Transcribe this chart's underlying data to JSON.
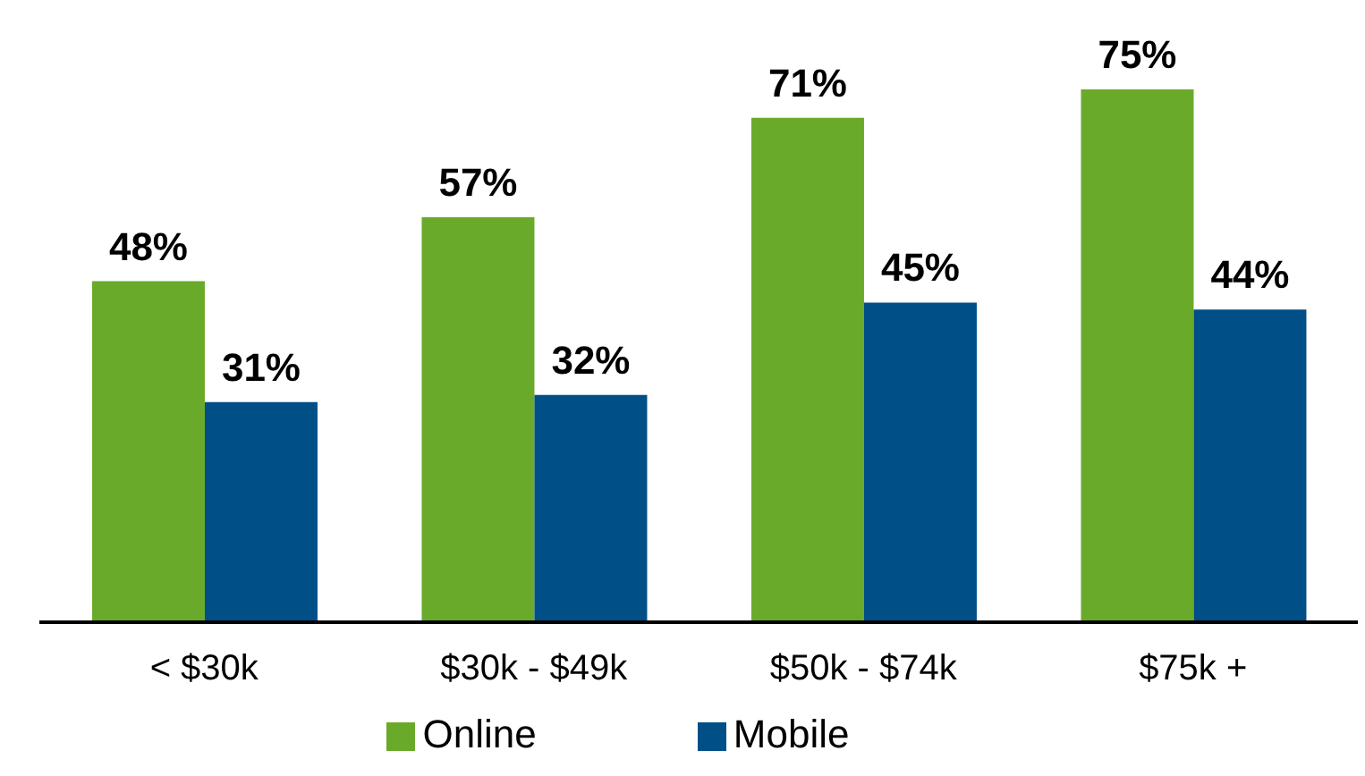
{
  "chart_data": {
    "type": "bar",
    "categories": [
      "< $30k",
      "$30k - $49k",
      "$50k - $74k",
      "$75k +"
    ],
    "series": [
      {
        "name": "Online",
        "color": "#6aaa2a",
        "values": [
          48,
          57,
          71,
          75
        ],
        "value_labels": [
          "48%",
          "57%",
          "71%",
          "75%"
        ]
      },
      {
        "name": "Mobile",
        "color": "#004f86",
        "values": [
          31,
          32,
          45,
          44
        ],
        "value_labels": [
          "31%",
          "32%",
          "45%",
          "44%"
        ]
      }
    ],
    "ylim": [
      0,
      75
    ],
    "legend": "bottom",
    "grid": false,
    "tick_labels": "x"
  }
}
